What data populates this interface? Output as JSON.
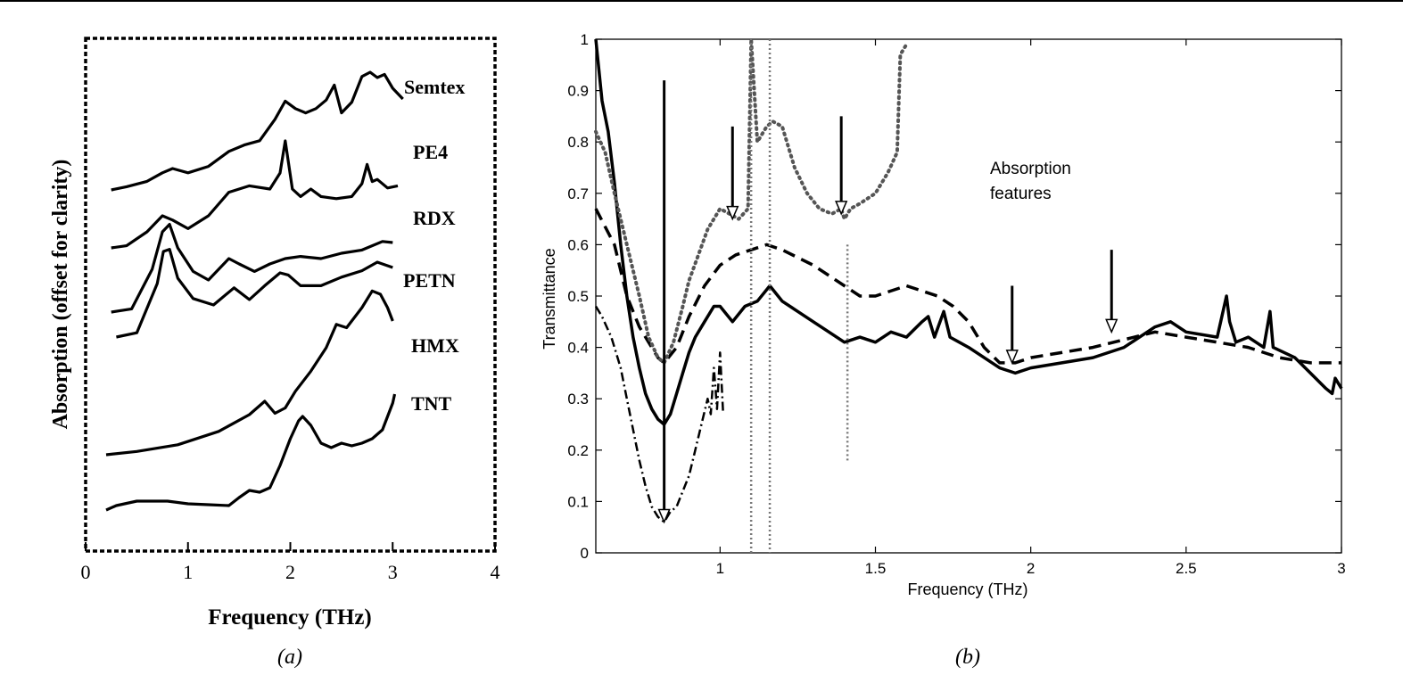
{
  "caption_a": "(a)",
  "caption_b": "(b)",
  "chart_data": [
    {
      "type": "line",
      "xlabel": "Frequency (THz)",
      "ylabel": "Absorption (offset for clarity)",
      "xlim": [
        0,
        4
      ],
      "xticks": [
        "0",
        "1",
        "2",
        "3",
        "4"
      ],
      "grid": false,
      "series": [
        {
          "name": "Semtex",
          "x": [
            0.25,
            0.4,
            0.6,
            0.75,
            0.85,
            1.0,
            1.2,
            1.4,
            1.55,
            1.7,
            1.85,
            1.95,
            2.05,
            2.15,
            2.25,
            2.35,
            2.43,
            2.5,
            2.6,
            2.7,
            2.78,
            2.85,
            2.92,
            3.0,
            3.1
          ],
          "y": [
            0,
            0.03,
            0.08,
            0.16,
            0.2,
            0.16,
            0.22,
            0.36,
            0.42,
            0.46,
            0.66,
            0.83,
            0.76,
            0.72,
            0.76,
            0.84,
            0.98,
            0.72,
            0.82,
            1.06,
            1.1,
            1.05,
            1.08,
            0.95,
            0.85
          ]
        },
        {
          "name": "PE4",
          "x": [
            0.25,
            0.4,
            0.6,
            0.75,
            0.85,
            1.0,
            1.2,
            1.4,
            1.6,
            1.8,
            1.9,
            1.95,
            2.02,
            2.1,
            2.2,
            2.3,
            2.45,
            2.6,
            2.7,
            2.75,
            2.8,
            2.85,
            2.95,
            3.05
          ],
          "y": [
            0,
            0.02,
            0.15,
            0.3,
            0.26,
            0.18,
            0.3,
            0.52,
            0.58,
            0.55,
            0.7,
            1.0,
            0.55,
            0.48,
            0.55,
            0.48,
            0.46,
            0.48,
            0.6,
            0.78,
            0.62,
            0.64,
            0.56,
            0.58
          ]
        },
        {
          "name": "RDX",
          "x": [
            0.25,
            0.45,
            0.65,
            0.75,
            0.82,
            0.9,
            1.05,
            1.2,
            1.4,
            1.5,
            1.65,
            1.8,
            1.95,
            2.1,
            2.3,
            2.5,
            2.7,
            2.9,
            3.0
          ],
          "y": [
            0,
            0.03,
            0.4,
            0.75,
            0.82,
            0.6,
            0.38,
            0.3,
            0.5,
            0.45,
            0.38,
            0.45,
            0.5,
            0.52,
            0.5,
            0.55,
            0.58,
            0.66,
            0.65
          ]
        },
        {
          "name": "PETN",
          "x": [
            0.3,
            0.5,
            0.7,
            0.76,
            0.82,
            0.9,
            1.05,
            1.25,
            1.45,
            1.6,
            1.75,
            1.9,
            1.98,
            2.1,
            2.3,
            2.5,
            2.7,
            2.85,
            3.0
          ],
          "y": [
            0,
            0.04,
            0.5,
            0.8,
            0.82,
            0.55,
            0.36,
            0.3,
            0.46,
            0.35,
            0.48,
            0.6,
            0.58,
            0.48,
            0.48,
            0.56,
            0.62,
            0.7,
            0.65
          ]
        },
        {
          "name": "HMX",
          "x": [
            0.3,
            0.6,
            1.0,
            1.4,
            1.7,
            1.85,
            1.95,
            2.02,
            2.15,
            2.35,
            2.55,
            2.75,
            2.85,
            2.95
          ],
          "y": [
            0,
            0.02,
            0.05,
            0.12,
            0.3,
            0.55,
            0.62,
            0.55,
            0.25,
            0.15,
            0.08,
            0.25,
            0.2,
            0.15
          ]
        },
        {
          "name": "TNT",
          "x": [
            0.2,
            0.5,
            0.9,
            1.3,
            1.6,
            1.75,
            1.85,
            1.95,
            2.05,
            2.2,
            2.35,
            2.45,
            2.55,
            2.7,
            2.8,
            2.88,
            2.95,
            3.0
          ],
          "y": [
            0,
            0.05,
            0.15,
            0.35,
            0.6,
            0.8,
            0.62,
            0.7,
            0.95,
            1.25,
            1.6,
            1.95,
            1.9,
            2.2,
            2.45,
            2.4,
            2.2,
            2.0
          ]
        },
        {
          "name": "",
          "x": [
            0.2,
            0.3,
            0.5,
            0.8,
            1.0,
            1.2,
            1.4,
            1.5,
            1.6,
            1.7,
            1.8,
            1.9,
            2.0,
            2.08,
            2.12,
            2.2,
            2.3,
            2.4,
            2.5,
            2.6,
            2.7,
            2.8,
            2.9,
            3.0,
            3.02
          ],
          "y": [
            0,
            0.05,
            0.1,
            0.1,
            0.07,
            0.06,
            0.05,
            0.14,
            0.22,
            0.2,
            0.25,
            0.5,
            0.8,
            1.0,
            1.05,
            0.95,
            0.75,
            0.7,
            0.75,
            0.72,
            0.75,
            0.8,
            0.9,
            1.2,
            1.3
          ]
        }
      ]
    },
    {
      "type": "line",
      "xlabel": "Frequency (THz)",
      "ylabel": "Transmittance",
      "xlim": [
        0.6,
        3
      ],
      "ylim": [
        0,
        1
      ],
      "xticks": [
        "1",
        "1.5",
        "2",
        "2.5",
        "3"
      ],
      "yticks": [
        "0",
        "0.1",
        "0.2",
        "0.3",
        "0.4",
        "0.5",
        "0.6",
        "0.7",
        "0.8",
        "0.9",
        "1"
      ],
      "grid": false,
      "annotations": [
        "Absorption features"
      ],
      "arrows": [
        {
          "x": 0.82,
          "y_from": 0.92,
          "y_to": 0.06
        },
        {
          "x": 1.04,
          "y_from": 0.83,
          "y_to": 0.65
        },
        {
          "x": 1.39,
          "y_from": 0.85,
          "y_to": 0.66
        },
        {
          "x": 1.94,
          "y_from": 0.52,
          "y_to": 0.37
        },
        {
          "x": 2.26,
          "y_from": 0.59,
          "y_to": 0.43
        }
      ],
      "series": [
        {
          "name": "",
          "style": "solid",
          "x": [
            0.6,
            0.62,
            0.64,
            0.66,
            0.68,
            0.7,
            0.72,
            0.74,
            0.76,
            0.78,
            0.8,
            0.82,
            0.84,
            0.86,
            0.88,
            0.9,
            0.92,
            0.95,
            0.98,
            1.0,
            1.04,
            1.08,
            1.12,
            1.16,
            1.2,
            1.25,
            1.3,
            1.35,
            1.4,
            1.45,
            1.5,
            1.55,
            1.6,
            1.65,
            1.67,
            1.69,
            1.72,
            1.74,
            1.8,
            1.85,
            1.9,
            1.95,
            2.0,
            2.1,
            2.2,
            2.3,
            2.4,
            2.45,
            2.5,
            2.6,
            2.63,
            2.64,
            2.66,
            2.7,
            2.75,
            2.77,
            2.78,
            2.85,
            2.9,
            2.95,
            2.97,
            2.98,
            3.0
          ],
          "y": [
            1.0,
            0.88,
            0.82,
            0.72,
            0.6,
            0.5,
            0.42,
            0.36,
            0.31,
            0.28,
            0.26,
            0.25,
            0.27,
            0.31,
            0.35,
            0.39,
            0.42,
            0.45,
            0.48,
            0.48,
            0.45,
            0.48,
            0.49,
            0.52,
            0.49,
            0.47,
            0.45,
            0.43,
            0.41,
            0.42,
            0.41,
            0.43,
            0.42,
            0.45,
            0.46,
            0.42,
            0.47,
            0.42,
            0.4,
            0.38,
            0.36,
            0.35,
            0.36,
            0.37,
            0.38,
            0.4,
            0.44,
            0.45,
            0.43,
            0.42,
            0.5,
            0.45,
            0.41,
            0.42,
            0.4,
            0.47,
            0.4,
            0.38,
            0.35,
            0.32,
            0.31,
            0.34,
            0.32
          ]
        },
        {
          "name": "",
          "style": "dashed",
          "x": [
            0.6,
            0.66,
            0.7,
            0.74,
            0.78,
            0.8,
            0.82,
            0.86,
            0.9,
            0.95,
            1.0,
            1.05,
            1.1,
            1.15,
            1.2,
            1.3,
            1.4,
            1.45,
            1.5,
            1.6,
            1.7,
            1.75,
            1.8,
            1.85,
            1.9,
            1.95,
            2.0,
            2.2,
            2.4,
            2.5,
            2.6,
            2.7,
            2.8,
            2.9,
            3.0
          ],
          "y": [
            0.67,
            0.6,
            0.5,
            0.44,
            0.4,
            0.38,
            0.37,
            0.4,
            0.46,
            0.52,
            0.56,
            0.58,
            0.59,
            0.6,
            0.59,
            0.56,
            0.52,
            0.5,
            0.5,
            0.52,
            0.5,
            0.48,
            0.45,
            0.4,
            0.37,
            0.37,
            0.38,
            0.4,
            0.43,
            0.42,
            0.41,
            0.4,
            0.38,
            0.37,
            0.37
          ]
        },
        {
          "name": "",
          "style": "dotted",
          "x": [
            0.6,
            0.63,
            0.66,
            0.7,
            0.74,
            0.77,
            0.8,
            0.82,
            0.85,
            0.88,
            0.9,
            0.93,
            0.96,
            1.0,
            1.03,
            1.06,
            1.09,
            1.1,
            1.12,
            1.15,
            1.17,
            1.2,
            1.24,
            1.28,
            1.32,
            1.36,
            1.39,
            1.4,
            1.42,
            1.45,
            1.5,
            1.54,
            1.57,
            1.58,
            1.6
          ],
          "y": [
            0.82,
            0.78,
            0.7,
            0.6,
            0.5,
            0.42,
            0.38,
            0.37,
            0.41,
            0.48,
            0.53,
            0.58,
            0.63,
            0.67,
            0.66,
            0.65,
            0.67,
            1.0,
            0.8,
            0.83,
            0.84,
            0.83,
            0.75,
            0.7,
            0.67,
            0.66,
            0.67,
            0.65,
            0.67,
            0.68,
            0.7,
            0.74,
            0.78,
            0.97,
            0.99
          ]
        },
        {
          "name": "",
          "style": "dashdot",
          "x": [
            0.6,
            0.62,
            0.65,
            0.68,
            0.7,
            0.72,
            0.74,
            0.76,
            0.78,
            0.8,
            0.82,
            0.84,
            0.86,
            0.88,
            0.9,
            0.92,
            0.94,
            0.96,
            0.97,
            0.98,
            0.99,
            1.0,
            1.01
          ],
          "y": [
            0.48,
            0.46,
            0.42,
            0.36,
            0.3,
            0.24,
            0.18,
            0.13,
            0.09,
            0.07,
            0.06,
            0.08,
            0.09,
            0.12,
            0.15,
            0.2,
            0.25,
            0.3,
            0.27,
            0.36,
            0.28,
            0.39,
            0.27
          ]
        },
        {
          "name": "",
          "style": "dotted-vertical",
          "x": [
            1.1,
            1.1,
            1.16,
            1.16,
            1.41,
            1.41
          ],
          "y": [
            0.0,
            1.0,
            1.0,
            0.0,
            0.18,
            0.6
          ]
        }
      ]
    }
  ]
}
